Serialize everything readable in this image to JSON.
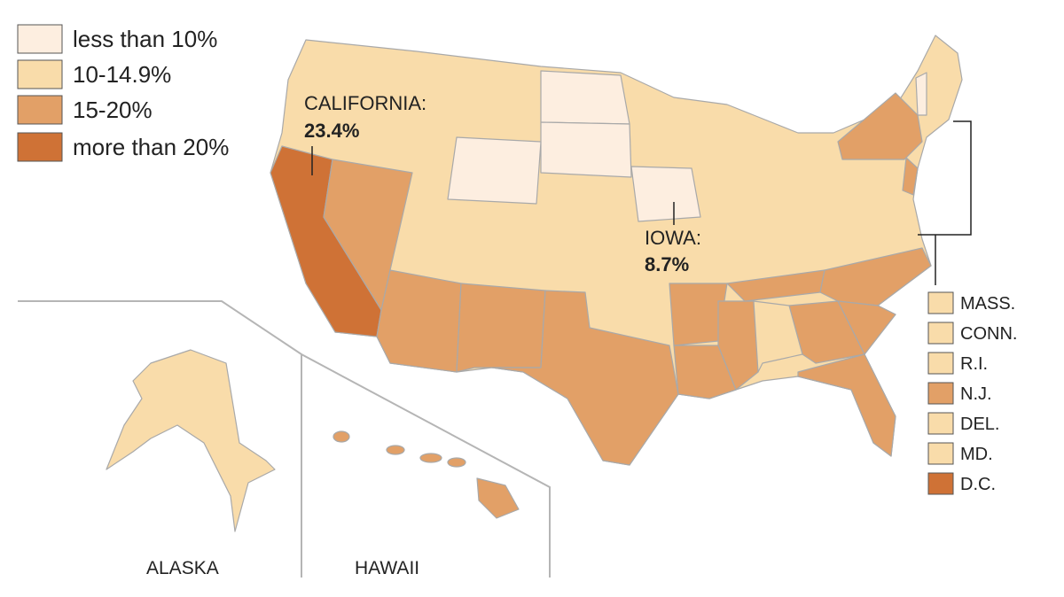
{
  "legend": [
    "less than 10%",
    "10-14.9%",
    "15-20%",
    "more than 20%"
  ],
  "annotations": {
    "california": {
      "name": "CALIFORNIA:",
      "value": "23.4%"
    },
    "iowa": {
      "name": "IOWA:",
      "value": "8.7%"
    }
  },
  "small_states": [
    "MASS.",
    "CONN.",
    "R.I.",
    "N.J.",
    "DEL.",
    "MD.",
    "D.C."
  ],
  "insets": {
    "alaska": "ALASKA",
    "hawaii": "HAWAII"
  }
}
